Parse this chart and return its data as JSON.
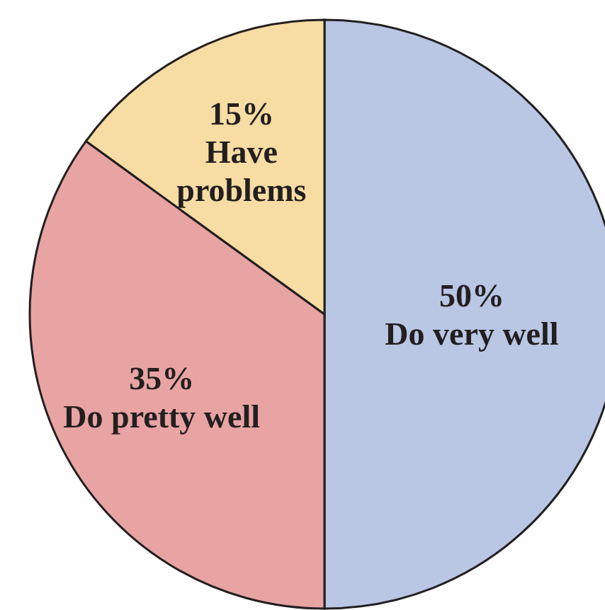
{
  "chart_data": {
    "type": "pie",
    "categories": [
      "Do very well",
      "Do pretty well",
      "Have problems"
    ],
    "values": [
      50,
      35,
      15
    ],
    "value_labels": [
      "50%",
      "35%",
      "15%"
    ],
    "colors": [
      "#b9c6e4",
      "#e8a3a3",
      "#f7dca3"
    ]
  }
}
